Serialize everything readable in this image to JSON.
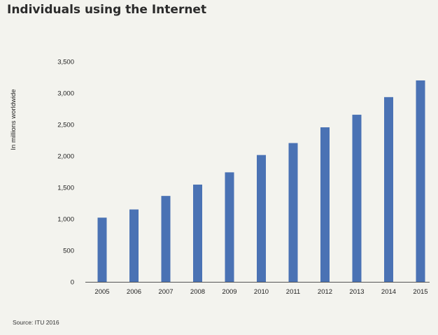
{
  "chart_data": {
    "type": "bar",
    "title": "Individuals using the Internet",
    "ylabel": "In millions worldwide",
    "xlabel": "",
    "source": "Source: ITU 2016",
    "categories": [
      "2005",
      "2006",
      "2007",
      "2008",
      "2009",
      "2010",
      "2011",
      "2012",
      "2013",
      "2014",
      "2015"
    ],
    "values": [
      1020,
      1150,
      1365,
      1545,
      1740,
      2015,
      2205,
      2455,
      2655,
      2935,
      3200
    ],
    "ylim": [
      0,
      3500
    ],
    "yticks": [
      0,
      500,
      1000,
      1500,
      2000,
      2500,
      3000,
      3500
    ],
    "ytick_labels": [
      "0",
      "500",
      "1,000",
      "1,500",
      "2,000",
      "2,500",
      "3,000",
      "3,500"
    ],
    "grid": false,
    "legend": "none",
    "bar_color": "#4a72b4"
  }
}
